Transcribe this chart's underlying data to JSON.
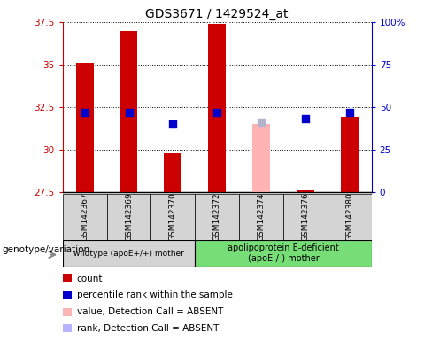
{
  "title": "GDS3671 / 1429524_at",
  "samples": [
    "GSM142367",
    "GSM142369",
    "GSM142370",
    "GSM142372",
    "GSM142374",
    "GSM142376",
    "GSM142380"
  ],
  "count_values": [
    35.1,
    37.0,
    29.8,
    37.4,
    null,
    27.6,
    31.9
  ],
  "count_absent_values": [
    null,
    null,
    null,
    null,
    31.5,
    null,
    null
  ],
  "percentile_values": [
    47,
    47,
    40,
    47,
    null,
    43,
    47
  ],
  "percentile_absent_values": [
    null,
    null,
    null,
    null,
    41,
    null,
    null
  ],
  "ylim_left": [
    27.5,
    37.5
  ],
  "ylim_right": [
    0,
    100
  ],
  "yticks_left": [
    27.5,
    30.0,
    32.5,
    35.0,
    37.5
  ],
  "yticks_right": [
    0,
    25,
    50,
    75,
    100
  ],
  "ytick_labels_left": [
    "27.5",
    "30",
    "32.5",
    "35",
    "37.5"
  ],
  "ytick_labels_right": [
    "0",
    "25",
    "50",
    "75",
    "100%"
  ],
  "group1_label": "wildtype (apoE+/+) mother",
  "group2_label": "apolipoprotein E-deficient\n(apoE-/-) mother",
  "genotype_label": "genotype/variation",
  "legend_items": [
    {
      "label": "count",
      "color": "#cc0000"
    },
    {
      "label": "percentile rank within the sample",
      "color": "#0000cc"
    },
    {
      "label": "value, Detection Call = ABSENT",
      "color": "#ffb3b3"
    },
    {
      "label": "rank, Detection Call = ABSENT",
      "color": "#b3b3ff"
    }
  ],
  "bar_width": 0.4,
  "bar_color": "#cc0000",
  "bar_absent_color": "#ffb3b3",
  "dot_color": "#0000cc",
  "dot_absent_color": "#b3b3cc",
  "left_axis_color": "#cc0000",
  "right_axis_color": "#0000cc",
  "group1_bg": "#d4d4d4",
  "group2_bg": "#77dd77",
  "dot_size": 35,
  "n_group1": 3,
  "n_group2": 4
}
